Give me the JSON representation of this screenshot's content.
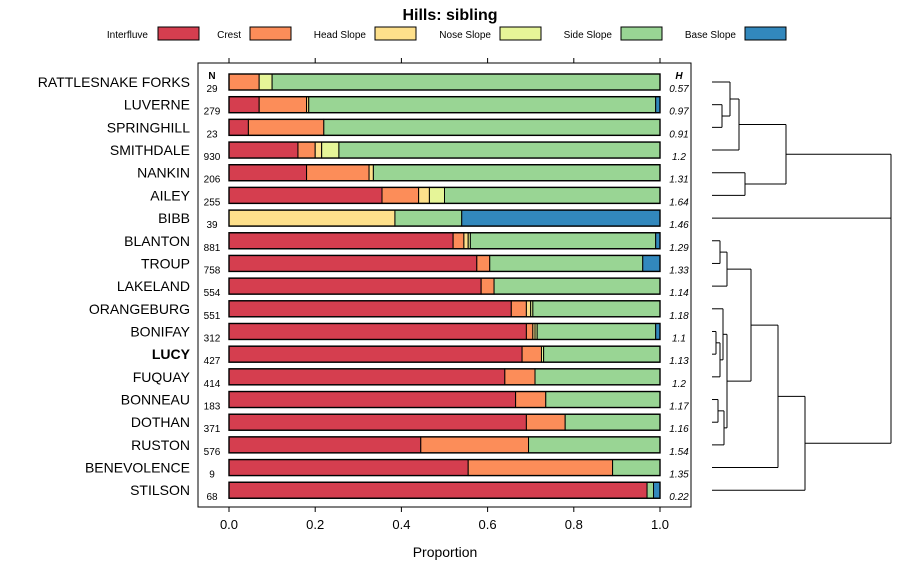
{
  "chart_data": {
    "type": "bar",
    "orientation": "horizontal-stacked",
    "title": "Hills: sibling",
    "xlabel": "Proportion",
    "ylabel": "",
    "xlim": [
      0,
      1
    ],
    "xticks": [
      "0.0",
      "0.2",
      "0.4",
      "0.6",
      "0.8",
      "1.0"
    ],
    "n_header": "N",
    "h_header": "H",
    "legend": [
      {
        "name": "Interfluve",
        "color": "#d53e4f"
      },
      {
        "name": "Crest",
        "color": "#fc8d59"
      },
      {
        "name": "Head Slope",
        "color": "#fee08b"
      },
      {
        "name": "Nose Slope",
        "color": "#e6f598"
      },
      {
        "name": "Side Slope",
        "color": "#99d594"
      },
      {
        "name": "Base Slope",
        "color": "#3288bd"
      }
    ],
    "highlight": "LUCY",
    "rows": [
      {
        "name": "RATTLESNAKE FORKS",
        "n": "29",
        "h": "0.57",
        "values": [
          0.0,
          0.07,
          0.0,
          0.03,
          0.9,
          0.0
        ]
      },
      {
        "name": "LUVERNE",
        "n": "279",
        "h": "0.97",
        "values": [
          0.07,
          0.11,
          0.005,
          0.0,
          0.805,
          0.01
        ]
      },
      {
        "name": "SPRINGHILL",
        "n": "23",
        "h": "0.91",
        "values": [
          0.045,
          0.175,
          0.0,
          0.0,
          0.78,
          0.0
        ]
      },
      {
        "name": "SMITHDALE",
        "n": "930",
        "h": "1.2",
        "values": [
          0.16,
          0.04,
          0.015,
          0.04,
          0.745,
          0.0
        ]
      },
      {
        "name": "NANKIN",
        "n": "206",
        "h": "1.31",
        "values": [
          0.18,
          0.145,
          0.01,
          0.0,
          0.665,
          0.0
        ]
      },
      {
        "name": "AILEY",
        "n": "255",
        "h": "1.64",
        "values": [
          0.355,
          0.085,
          0.025,
          0.035,
          0.5,
          0.0
        ]
      },
      {
        "name": "BIBB",
        "n": "39",
        "h": "1.46",
        "values": [
          0.0,
          0.0,
          0.385,
          0.0,
          0.155,
          0.46
        ]
      },
      {
        "name": "BLANTON",
        "n": "881",
        "h": "1.29",
        "values": [
          0.52,
          0.025,
          0.01,
          0.005,
          0.43,
          0.01
        ]
      },
      {
        "name": "TROUP",
        "n": "758",
        "h": "1.33",
        "values": [
          0.575,
          0.03,
          0.0,
          0.0,
          0.355,
          0.04
        ]
      },
      {
        "name": "LAKELAND",
        "n": "554",
        "h": "1.14",
        "values": [
          0.585,
          0.03,
          0.0,
          0.0,
          0.385,
          0.0
        ]
      },
      {
        "name": "ORANGEBURG",
        "n": "551",
        "h": "1.18",
        "values": [
          0.655,
          0.035,
          0.01,
          0.005,
          0.295,
          0.0
        ]
      },
      {
        "name": "BONIFAY",
        "n": "312",
        "h": "1.1",
        "values": [
          0.69,
          0.015,
          0.005,
          0.005,
          0.275,
          0.01
        ]
      },
      {
        "name": "LUCY",
        "n": "427",
        "h": "1.13",
        "values": [
          0.68,
          0.045,
          0.0,
          0.005,
          0.27,
          0.0
        ]
      },
      {
        "name": "FUQUAY",
        "n": "414",
        "h": "1.2",
        "values": [
          0.64,
          0.07,
          0.0,
          0.0,
          0.29,
          0.0
        ]
      },
      {
        "name": "BONNEAU",
        "n": "183",
        "h": "1.17",
        "values": [
          0.665,
          0.07,
          0.0,
          0.0,
          0.265,
          0.0
        ]
      },
      {
        "name": "DOTHAN",
        "n": "371",
        "h": "1.16",
        "values": [
          0.69,
          0.09,
          0.0,
          0.0,
          0.22,
          0.0
        ]
      },
      {
        "name": "RUSTON",
        "n": "576",
        "h": "1.54",
        "values": [
          0.445,
          0.25,
          0.0,
          0.0,
          0.305,
          0.0
        ]
      },
      {
        "name": "BENEVOLENCE",
        "n": "9",
        "h": "1.35",
        "values": [
          0.555,
          0.335,
          0.0,
          0.0,
          0.11,
          0.0
        ]
      },
      {
        "name": "STILSON",
        "n": "68",
        "h": "0.22",
        "values": [
          0.97,
          0.0,
          0.0,
          0.0,
          0.015,
          0.015
        ]
      }
    ]
  }
}
